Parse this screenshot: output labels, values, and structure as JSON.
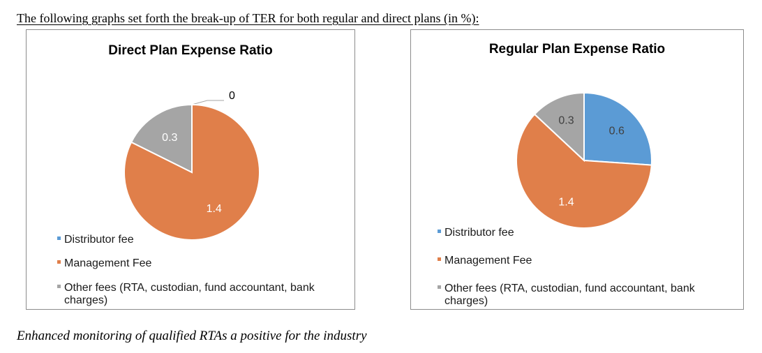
{
  "intro_text": "The following graphs set forth the break-up of TER for both regular and direct plans (in %):",
  "closing_text": "Enhanced monitoring of qualified RTAs a positive for the industry",
  "colors": {
    "distributor": "#5b9bd5",
    "management": "#e07f4a",
    "other": "#a5a5a5",
    "label_light": "#ffffff",
    "label_dark": "#404040"
  },
  "chart_data": [
    {
      "type": "pie",
      "title": "Direct Plan Expense Ratio",
      "categories": [
        "Distributor fee",
        "Management Fee",
        "Other fees (RTA, custodian, fund accountant, bank charges)"
      ],
      "values": [
        0,
        1.4,
        0.3
      ],
      "data_labels": [
        "0",
        "1.4",
        "0.3"
      ],
      "legend_position": "bottom-left"
    },
    {
      "type": "pie",
      "title": "Regular Plan Expense Ratio",
      "categories": [
        "Distributor fee",
        "Management Fee",
        "Other fees (RTA, custodian, fund accountant, bank charges)"
      ],
      "values": [
        0.6,
        1.4,
        0.3
      ],
      "data_labels": [
        "0.6",
        "1.4",
        "0.3"
      ],
      "legend_position": "bottom-left"
    }
  ]
}
